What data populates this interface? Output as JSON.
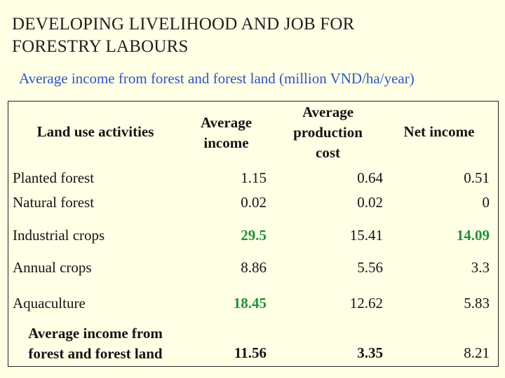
{
  "title_lines": [
    "DEVELOPING LIVELIHOOD AND JOB FOR",
    "FORESTRY LABOURS"
  ],
  "subtitle": "Average income from forest and forest land (million VND/ha/year)",
  "colors": {
    "background": "#ffffe6",
    "subtitle": "#2e54c4",
    "highlight": "#20923a"
  },
  "table": {
    "headers": {
      "activity": "Land use activities",
      "income": [
        "Average",
        "income"
      ],
      "cost": [
        "Average",
        "production",
        "cost"
      ],
      "net": "Net income"
    },
    "rows": [
      {
        "activity": "Planted forest",
        "income": "1.15",
        "cost": "0.64",
        "net": "0.51"
      },
      {
        "activity": "Natural forest",
        "income": "0.02",
        "cost": "0.02",
        "net": "0"
      },
      {
        "activity": "Industrial crops",
        "income": "29.5",
        "cost": "15.41",
        "net": "14.09"
      },
      {
        "activity": "Annual crops",
        "income": "8.86",
        "cost": "5.56",
        "net": "3.3"
      },
      {
        "activity": "Aquaculture",
        "income": "18.45",
        "cost": "12.62",
        "net": "5.83"
      }
    ],
    "summary": {
      "activity": [
        "Average income from",
        "forest and forest land"
      ],
      "income": "11.56",
      "cost": "3.35",
      "net": "8.21"
    }
  }
}
